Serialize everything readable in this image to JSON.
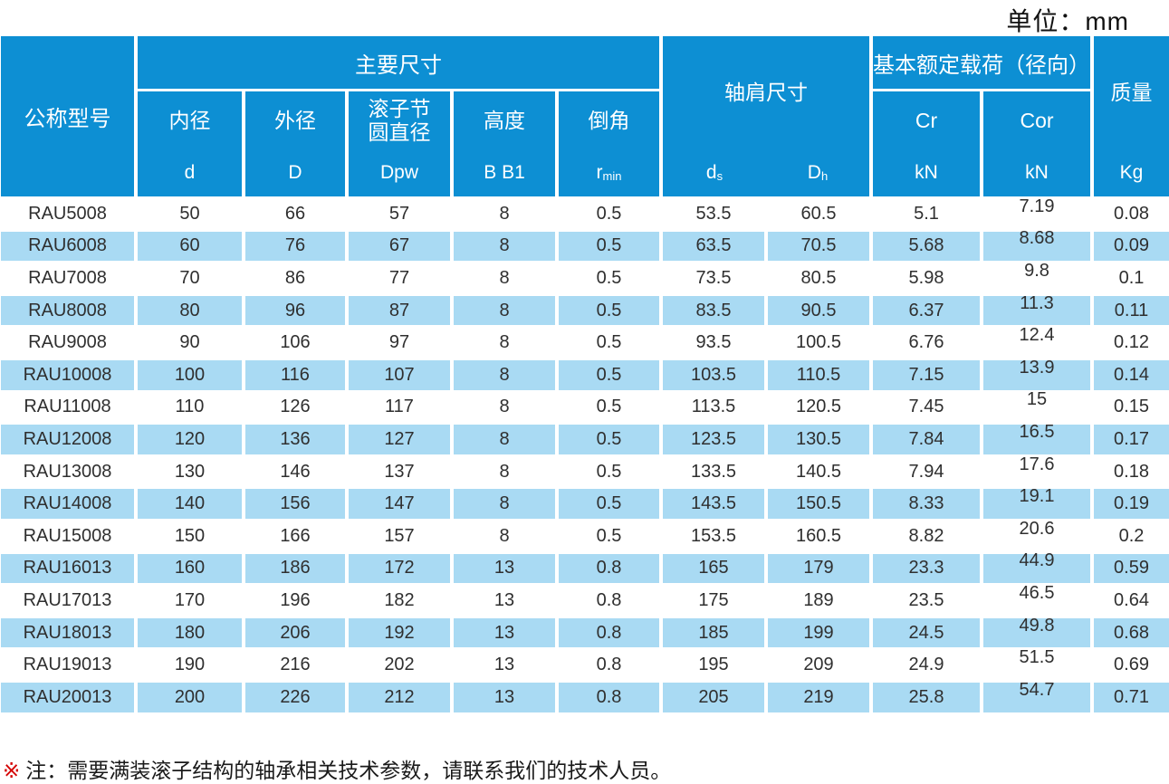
{
  "unit_label": "单位：mm",
  "colors": {
    "header_blue": "#0d8fd3",
    "row_alt_blue": "#a9daf3",
    "note_mark_red": "#d40000"
  },
  "header": {
    "model": "公称型号",
    "main_dims": "主要尺寸",
    "shoulder_dims": "轴肩尺寸",
    "load_rating": "基本额定载荷（径向）",
    "mass": "质量",
    "sub_columns": [
      {
        "name": "内径",
        "symbol": "d",
        "sub": ""
      },
      {
        "name": "外径",
        "symbol": "D",
        "sub": ""
      },
      {
        "name": "滚子节\n圆直径",
        "symbol": "Dpw",
        "sub": ""
      },
      {
        "name": "高度",
        "symbol": "B B1",
        "sub": ""
      },
      {
        "name": "倒角",
        "symbol": "r",
        "sub": "min"
      }
    ],
    "shoulder_sub": [
      {
        "symbol": "d",
        "sub": "s"
      },
      {
        "symbol": "D",
        "sub": "h"
      }
    ],
    "cr": {
      "symbol": "Cr",
      "unit": "kN"
    },
    "cor": {
      "symbol": "Cor",
      "unit": "kN"
    },
    "mass_unit": "Kg"
  },
  "rows": [
    [
      "RAU5008",
      "50",
      "66",
      "57",
      "8",
      "0.5",
      "53.5",
      "60.5",
      "5.1",
      "7.19",
      "0.08"
    ],
    [
      "RAU6008",
      "60",
      "76",
      "67",
      "8",
      "0.5",
      "63.5",
      "70.5",
      "5.68",
      "8.68",
      "0.09"
    ],
    [
      "RAU7008",
      "70",
      "86",
      "77",
      "8",
      "0.5",
      "73.5",
      "80.5",
      "5.98",
      "9.8",
      "0.1"
    ],
    [
      "RAU8008",
      "80",
      "96",
      "87",
      "8",
      "0.5",
      "83.5",
      "90.5",
      "6.37",
      "11.3",
      "0.11"
    ],
    [
      "RAU9008",
      "90",
      "106",
      "97",
      "8",
      "0.5",
      "93.5",
      "100.5",
      "6.76",
      "12.4",
      "0.12"
    ],
    [
      "RAU10008",
      "100",
      "116",
      "107",
      "8",
      "0.5",
      "103.5",
      "110.5",
      "7.15",
      "13.9",
      "0.14"
    ],
    [
      "RAU11008",
      "110",
      "126",
      "117",
      "8",
      "0.5",
      "113.5",
      "120.5",
      "7.45",
      "15",
      "0.15"
    ],
    [
      "RAU12008",
      "120",
      "136",
      "127",
      "8",
      "0.5",
      "123.5",
      "130.5",
      "7.84",
      "16.5",
      "0.17"
    ],
    [
      "RAU13008",
      "130",
      "146",
      "137",
      "8",
      "0.5",
      "133.5",
      "140.5",
      "7.94",
      "17.6",
      "0.18"
    ],
    [
      "RAU14008",
      "140",
      "156",
      "147",
      "8",
      "0.5",
      "143.5",
      "150.5",
      "8.33",
      "19.1",
      "0.19"
    ],
    [
      "RAU15008",
      "150",
      "166",
      "157",
      "8",
      "0.5",
      "153.5",
      "160.5",
      "8.82",
      "20.6",
      "0.2"
    ],
    [
      "RAU16013",
      "160",
      "186",
      "172",
      "13",
      "0.8",
      "165",
      "179",
      "23.3",
      "44.9",
      "0.59"
    ],
    [
      "RAU17013",
      "170",
      "196",
      "182",
      "13",
      "0.8",
      "175",
      "189",
      "23.5",
      "46.5",
      "0.64"
    ],
    [
      "RAU18013",
      "180",
      "206",
      "192",
      "13",
      "0.8",
      "185",
      "199",
      "24.5",
      "49.8",
      "0.68"
    ],
    [
      "RAU19013",
      "190",
      "216",
      "202",
      "13",
      "0.8",
      "195",
      "209",
      "24.9",
      "51.5",
      "0.69"
    ],
    [
      "RAU20013",
      "200",
      "226",
      "212",
      "13",
      "0.8",
      "205",
      "219",
      "25.8",
      "54.7",
      "0.71"
    ]
  ],
  "note": {
    "mark": "※",
    "text": "注：需要满装滚子结构的轴承相关技术参数，请联系我们的技术人员。"
  }
}
